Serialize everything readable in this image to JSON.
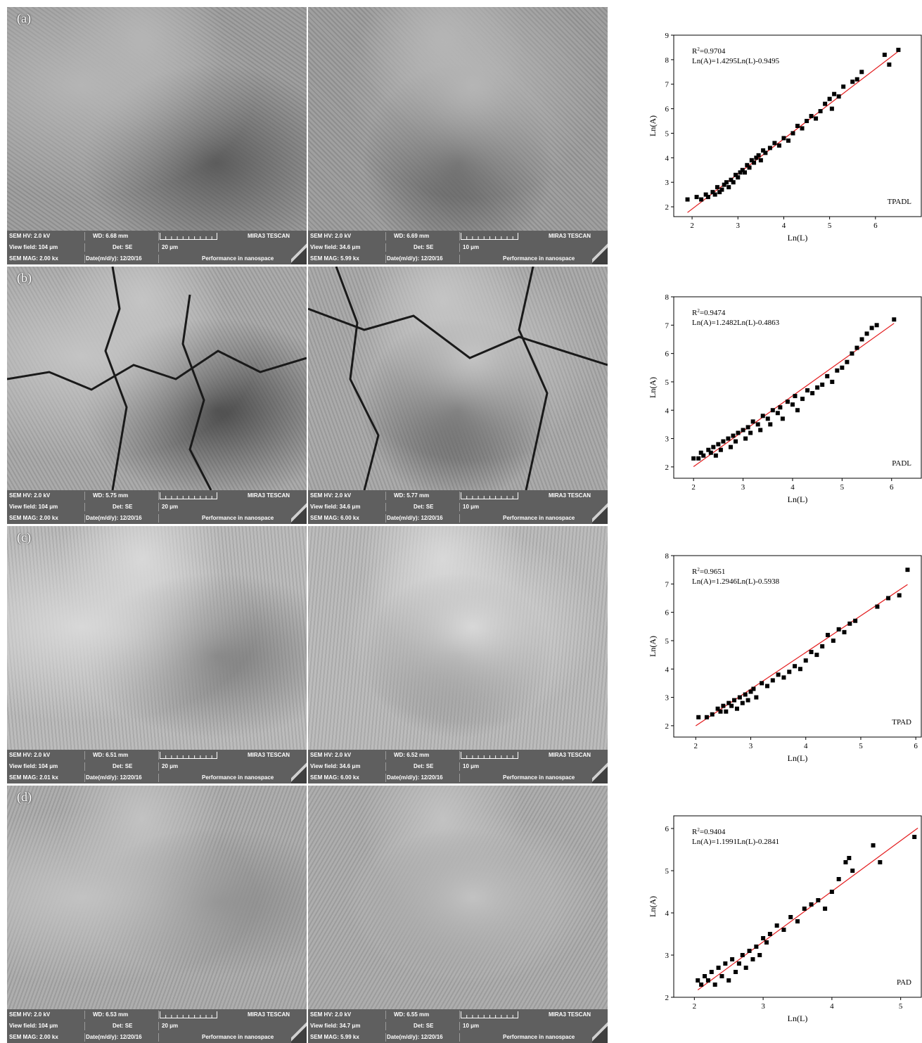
{
  "panels": [
    {
      "label": "(a)",
      "images": [
        {
          "hv": "SEM HV: 2.0 kV",
          "wd": "WD: 6.68 mm",
          "view_field": "View field: 104 μm",
          "det": "Det: SE",
          "scale": "20 μm",
          "mag": "SEM MAG: 2.00 kx",
          "date": "Date(m/d/y): 12/20/16",
          "brand": "MIRA3 TESCAN",
          "slogan": "Performance in nanospace"
        },
        {
          "hv": "SEM HV: 2.0 kV",
          "wd": "WD: 6.69 mm",
          "view_field": "View field: 34.6 μm",
          "det": "Det: SE",
          "scale": "10 μm",
          "mag": "SEM MAG: 5.99 kx",
          "date": "Date(m/d/y): 12/20/16",
          "brand": "MIRA3 TESCAN",
          "slogan": "Performance in nanospace"
        }
      ]
    },
    {
      "label": "(b)",
      "images": [
        {
          "hv": "SEM HV: 2.0 kV",
          "wd": "WD: 5.75 mm",
          "view_field": "View field: 104 μm",
          "det": "Det: SE",
          "scale": "20 μm",
          "mag": "SEM MAG: 2.00 kx",
          "date": "Date(m/d/y): 12/20/16",
          "brand": "MIRA3 TESCAN",
          "slogan": "Performance in nanospace"
        },
        {
          "hv": "SEM HV: 2.0 kV",
          "wd": "WD: 5.77 mm",
          "view_field": "View field: 34.6 μm",
          "det": "Det: SE",
          "scale": "10 μm",
          "mag": "SEM MAG: 6.00 kx",
          "date": "Date(m/d/y): 12/20/16",
          "brand": "MIRA3 TESCAN",
          "slogan": "Performance in nanospace"
        }
      ]
    },
    {
      "label": "(c)",
      "images": [
        {
          "hv": "SEM HV: 2.0 kV",
          "wd": "WD: 6.51 mm",
          "view_field": "View field: 104 μm",
          "det": "Det: SE",
          "scale": "20 μm",
          "mag": "SEM MAG: 2.01 kx",
          "date": "Date(m/d/y): 12/20/16",
          "brand": "MIRA3 TESCAN",
          "slogan": "Performance in nanospace"
        },
        {
          "hv": "SEM HV: 2.0 kV",
          "wd": "WD: 6.52 mm",
          "view_field": "View field: 34.6 μm",
          "det": "Det: SE",
          "scale": "10 μm",
          "mag": "SEM MAG: 6.00 kx",
          "date": "Date(m/d/y): 12/20/16",
          "brand": "MIRA3 TESCAN",
          "slogan": "Performance in nanospace"
        }
      ]
    },
    {
      "label": "(d)",
      "images": [
        {
          "hv": "SEM HV: 2.0 kV",
          "wd": "WD: 6.53 mm",
          "view_field": "View field: 104 μm",
          "det": "Det: SE",
          "scale": "20 μm",
          "mag": "SEM MAG: 2.00 kx",
          "date": "Date(m/d/y): 12/20/16",
          "brand": "MIRA3 TESCAN",
          "slogan": "Performance in nanospace"
        },
        {
          "hv": "SEM HV: 2.0 kV",
          "wd": "WD: 6.55 mm",
          "view_field": "View field: 34.7 μm",
          "det": "Det: SE",
          "scale": "10 μm",
          "mag": "SEM MAG: 5.99 kx",
          "date": "Date(m/d/y): 12/20/16",
          "brand": "MIRA3 TESCAN",
          "slogan": "Performance in nanospace"
        }
      ]
    }
  ],
  "colors": {
    "fit_line": "#e31a1c",
    "points": "#000000",
    "info_bar": "#5f5f5f"
  },
  "chart_data": [
    {
      "type": "scatter",
      "tag": "TPADL",
      "r2": "0.9704",
      "equation": "Ln(A)=1.4295Ln(L)-0.9495",
      "slope": 1.4295,
      "intercept": -0.9495,
      "xlabel": "Ln(L)",
      "ylabel": "Ln(A)",
      "xlim": [
        1.6,
        7.0
      ],
      "ylim": [
        1.6,
        9.0
      ],
      "xticks": [
        2,
        3,
        4,
        5,
        6
      ],
      "yticks": [
        2,
        3,
        4,
        5,
        6,
        7,
        8,
        9
      ],
      "fit_x": [
        1.9,
        6.5
      ],
      "x": [
        1.9,
        2.1,
        2.2,
        2.3,
        2.35,
        2.45,
        2.5,
        2.55,
        2.6,
        2.65,
        2.7,
        2.75,
        2.8,
        2.85,
        2.9,
        2.95,
        3.0,
        3.05,
        3.1,
        3.15,
        3.2,
        3.25,
        3.3,
        3.35,
        3.4,
        3.45,
        3.5,
        3.55,
        3.6,
        3.7,
        3.8,
        3.9,
        4.0,
        4.1,
        4.2,
        4.3,
        4.4,
        4.5,
        4.6,
        4.7,
        4.8,
        4.9,
        5.0,
        5.05,
        5.1,
        5.2,
        5.3,
        5.5,
        5.6,
        5.7,
        6.2,
        6.3,
        6.5
      ],
      "y": [
        2.3,
        2.4,
        2.3,
        2.5,
        2.4,
        2.6,
        2.5,
        2.8,
        2.6,
        2.7,
        2.9,
        3.0,
        2.8,
        3.1,
        3.0,
        3.3,
        3.2,
        3.4,
        3.5,
        3.4,
        3.7,
        3.6,
        3.9,
        3.8,
        4.0,
        4.1,
        3.9,
        4.3,
        4.2,
        4.4,
        4.6,
        4.5,
        4.8,
        4.7,
        5.0,
        5.3,
        5.2,
        5.5,
        5.7,
        5.6,
        5.9,
        6.2,
        6.4,
        6.0,
        6.6,
        6.5,
        6.9,
        7.1,
        7.2,
        7.5,
        8.2,
        7.8,
        8.4
      ]
    },
    {
      "type": "scatter",
      "tag": "PADL",
      "r2": "0.9474",
      "equation": "Ln(A)=1.2482Ln(L)-0.4863",
      "slope": 1.2482,
      "intercept": -0.4863,
      "xlabel": "Ln(L)",
      "ylabel": "Ln(A)",
      "xlim": [
        1.6,
        6.6
      ],
      "ylim": [
        1.6,
        8.0
      ],
      "xticks": [
        2,
        3,
        4,
        5,
        6
      ],
      "yticks": [
        2,
        3,
        4,
        5,
        6,
        7,
        8
      ],
      "fit_x": [
        2.0,
        6.05
      ],
      "x": [
        2.0,
        2.1,
        2.15,
        2.2,
        2.3,
        2.35,
        2.4,
        2.45,
        2.5,
        2.55,
        2.6,
        2.7,
        2.75,
        2.8,
        2.85,
        2.9,
        3.0,
        3.05,
        3.1,
        3.15,
        3.2,
        3.3,
        3.35,
        3.4,
        3.5,
        3.55,
        3.6,
        3.7,
        3.75,
        3.8,
        3.9,
        4.0,
        4.05,
        4.1,
        4.2,
        4.3,
        4.4,
        4.5,
        4.6,
        4.7,
        4.8,
        4.9,
        5.0,
        5.1,
        5.2,
        5.3,
        5.4,
        5.5,
        5.6,
        5.7,
        6.05
      ],
      "y": [
        2.3,
        2.3,
        2.5,
        2.4,
        2.6,
        2.5,
        2.7,
        2.4,
        2.8,
        2.6,
        2.9,
        3.0,
        2.7,
        3.1,
        2.9,
        3.2,
        3.3,
        3.0,
        3.4,
        3.2,
        3.6,
        3.5,
        3.3,
        3.8,
        3.7,
        3.5,
        4.0,
        3.9,
        4.1,
        3.7,
        4.3,
        4.2,
        4.5,
        4.0,
        4.4,
        4.7,
        4.6,
        4.8,
        4.9,
        5.2,
        5.0,
        5.4,
        5.5,
        5.7,
        6.0,
        6.2,
        6.5,
        6.7,
        6.9,
        7.0,
        7.2
      ]
    },
    {
      "type": "scatter",
      "tag": "TPAD",
      "r2": "0.9651",
      "equation": "Ln(A)=1.2946Ln(L)-0.5938",
      "slope": 1.2946,
      "intercept": -0.5938,
      "xlabel": "Ln(L)",
      "ylabel": "Ln(A)",
      "xlim": [
        1.6,
        6.1
      ],
      "ylim": [
        1.6,
        8.0
      ],
      "xticks": [
        2,
        3,
        4,
        5,
        6
      ],
      "yticks": [
        2,
        3,
        4,
        5,
        6,
        7,
        8
      ],
      "fit_x": [
        2.0,
        5.85
      ],
      "x": [
        2.05,
        2.2,
        2.3,
        2.4,
        2.45,
        2.5,
        2.55,
        2.6,
        2.65,
        2.7,
        2.75,
        2.8,
        2.85,
        2.9,
        2.95,
        3.0,
        3.05,
        3.1,
        3.2,
        3.3,
        3.4,
        3.5,
        3.6,
        3.7,
        3.8,
        3.9,
        4.0,
        4.1,
        4.2,
        4.3,
        4.4,
        4.5,
        4.6,
        4.7,
        4.8,
        4.9,
        5.3,
        5.5,
        5.7,
        5.85
      ],
      "y": [
        2.3,
        2.3,
        2.4,
        2.6,
        2.5,
        2.7,
        2.5,
        2.8,
        2.7,
        2.9,
        2.6,
        3.0,
        2.8,
        3.1,
        2.9,
        3.2,
        3.3,
        3.0,
        3.5,
        3.4,
        3.6,
        3.8,
        3.7,
        3.9,
        4.1,
        4.0,
        4.3,
        4.6,
        4.5,
        4.8,
        5.2,
        5.0,
        5.4,
        5.3,
        5.6,
        5.7,
        6.2,
        6.5,
        6.6,
        7.5
      ]
    },
    {
      "type": "scatter",
      "tag": "PAD",
      "r2": "0.9404",
      "equation": "Ln(A)=1.1991Ln(L)-0.2841",
      "slope": 1.1991,
      "intercept": -0.2841,
      "xlabel": "Ln(L)",
      "ylabel": "Ln(A)",
      "xlim": [
        1.7,
        5.3
      ],
      "ylim": [
        2.0,
        6.3
      ],
      "xticks": [
        2,
        3,
        4,
        5
      ],
      "yticks": [
        2,
        3,
        4,
        5,
        6
      ],
      "fit_x": [
        2.05,
        5.25
      ],
      "x": [
        2.05,
        2.1,
        2.15,
        2.2,
        2.25,
        2.3,
        2.35,
        2.4,
        2.45,
        2.5,
        2.55,
        2.6,
        2.65,
        2.7,
        2.75,
        2.8,
        2.85,
        2.9,
        2.95,
        3.0,
        3.05,
        3.1,
        3.2,
        3.3,
        3.4,
        3.5,
        3.6,
        3.7,
        3.8,
        3.9,
        4.0,
        4.1,
        4.2,
        4.25,
        4.3,
        4.6,
        4.7,
        5.2
      ],
      "y": [
        2.4,
        2.3,
        2.5,
        2.4,
        2.6,
        2.3,
        2.7,
        2.5,
        2.8,
        2.4,
        2.9,
        2.6,
        2.8,
        3.0,
        2.7,
        3.1,
        2.9,
        3.2,
        3.0,
        3.4,
        3.3,
        3.5,
        3.7,
        3.6,
        3.9,
        3.8,
        4.1,
        4.2,
        4.3,
        4.1,
        4.5,
        4.8,
        5.2,
        5.3,
        5.0,
        5.6,
        5.2,
        5.8
      ]
    }
  ]
}
